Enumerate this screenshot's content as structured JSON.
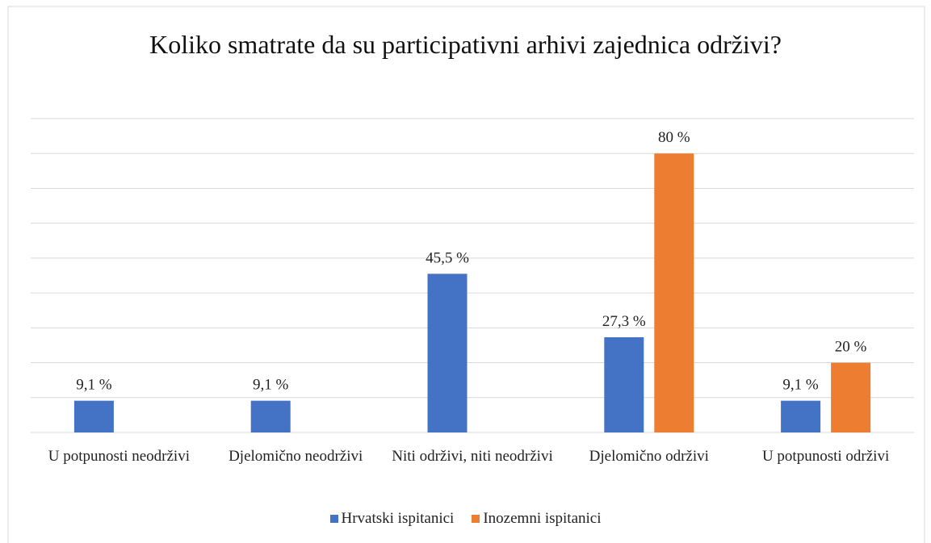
{
  "chart_data": {
    "type": "bar",
    "title": "Koliko smatrate da su participativni arhivi zajednica održivi?",
    "categories": [
      "U potpunosti neodrživi",
      "Djelomično neodrživi",
      "Niti održivi, niti neodrživi",
      "Djelomično održivi",
      "U potpunosti održivi"
    ],
    "series": [
      {
        "name": "Hrvatski ispitanici",
        "color": "#4472c4",
        "values": [
          9.1,
          9.1,
          45.5,
          27.3,
          9.1
        ],
        "value_labels": [
          "9,1 %",
          "9,1 %",
          "45,5 %",
          "27,3 %",
          "9,1 %"
        ]
      },
      {
        "name": "Inozemni ispitanici",
        "color": "#ed7d31",
        "values": [
          null,
          null,
          null,
          80,
          20
        ],
        "value_labels": [
          null,
          null,
          null,
          "80 %",
          "20 %"
        ]
      }
    ],
    "ylim": [
      0,
      90
    ],
    "yticks": [
      0,
      10,
      20,
      30,
      40,
      50,
      60,
      70,
      80,
      90
    ],
    "grid": true,
    "legend": "bottom"
  }
}
